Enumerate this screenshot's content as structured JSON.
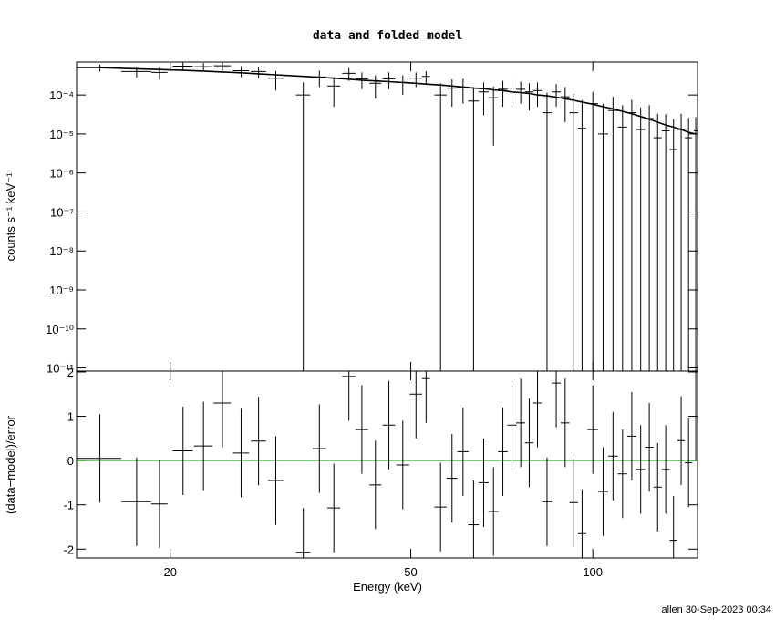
{
  "chart_data": [
    {
      "type": "errorbar",
      "title": "data and folded model",
      "ylabel": "counts s⁻¹ keV⁻¹",
      "log_x": true,
      "log_y": true,
      "xlim": [
        14,
        149
      ],
      "ylim": [
        8.3e-12,
        0.0007
      ],
      "yticks": [
        {
          "value": 0.0001,
          "label": "10⁻⁴"
        },
        {
          "value": 1e-05,
          "label": "10⁻⁵"
        },
        {
          "value": 1e-06,
          "label": "10⁻⁶"
        },
        {
          "value": 1e-07,
          "label": "10⁻⁷"
        },
        {
          "value": 1e-08,
          "label": "10⁻⁸"
        },
        {
          "value": 1e-09,
          "label": "10⁻⁹"
        },
        {
          "value": 1e-10,
          "label": "10⁻¹⁰"
        },
        {
          "value": 1e-11,
          "label": "10⁻¹¹"
        }
      ],
      "color": "#000000",
      "x": [
        15.3,
        17.6,
        19.2,
        21,
        22.7,
        24.4,
        26.2,
        28,
        29.9,
        33.2,
        35.3,
        37.3,
        39.5,
        41.5,
        43.7,
        46,
        48.5,
        51,
        53,
        56,
        58.5,
        61,
        63.5,
        66,
        68.5,
        71,
        73.5,
        76,
        78.5,
        81,
        84,
        87,
        90,
        93,
        96,
        100,
        104,
        108,
        112,
        116,
        120,
        124,
        128,
        132,
        136,
        140,
        144,
        148
      ],
      "xerr": [
        1.3,
        1.0,
        0.6,
        0.8,
        0.8,
        0.8,
        0.8,
        0.8,
        0.9,
        0.9,
        0.9,
        0.9,
        1.0,
        1.0,
        1.0,
        1.1,
        1.2,
        1.2,
        0.8,
        1.3,
        1.2,
        1.3,
        1.3,
        1.3,
        1.3,
        1.3,
        1.3,
        1.3,
        1.3,
        1.3,
        1.5,
        1.5,
        1.5,
        1.5,
        1.5,
        2,
        2,
        2,
        2,
        2,
        2,
        2,
        2,
        2,
        2,
        2,
        2,
        1
      ],
      "values": [
        0.0005,
        0.0004,
        0.00038,
        0.00055,
        0.00053,
        0.00056,
        0.00042,
        0.0004,
        0.00027,
        0.0001,
        0.00029,
        0.00017,
        0.00036,
        0.00026,
        0.0002,
        0.00026,
        0.00021,
        0.00027,
        0.0003,
        0.0001,
        0.00015,
        0.00016,
        7e-05,
        0.00012,
        8.5e-05,
        0.00014,
        0.00015,
        0.00014,
        0.00012,
        0.00013,
        3.5e-05,
        0.00012,
        9e-05,
        3.5e-05,
        1.4e-05,
        6e-05,
        1e-05,
        4e-05,
        1.5e-05,
        3.5e-05,
        1.3e-05,
        2.5e-05,
        8e-06,
        1.2e-05,
        4e-06,
        1.3e-05,
        8e-06,
        1.2e-05
      ],
      "errors": [
        0.0001,
        0.00012,
        0.00013,
        0.00013,
        0.00013,
        0.00014,
        0.00013,
        0.00013,
        0.00014,
        0.00011,
        0.00013,
        0.00012,
        0.00013,
        0.00012,
        0.00012,
        0.00012,
        0.00011,
        0.00011,
        0.00011,
        0.0001,
        0.0001,
        0.0001,
        9e-05,
        9e-05,
        8e-05,
        9e-05,
        9e-05,
        8e-05,
        8e-05,
        8e-05,
        8e-05,
        7e-05,
        7e-05,
        7e-05,
        6e-05,
        6e-05,
        5e-05,
        5e-05,
        4e-05,
        4e-05,
        3.5e-05,
        3e-05,
        2.5e-05,
        2e-05,
        2e-05,
        2e-05,
        1.8e-05,
        1.5e-05
      ],
      "model": [
        0.0005,
        0.00047,
        0.00045,
        0.00043,
        0.00041,
        0.00039,
        0.00037,
        0.00035,
        0.00033,
        0.0003,
        0.000285,
        0.00027,
        0.000255,
        0.00024,
        0.00023,
        0.00022,
        0.00021,
        0.0002,
        0.00019,
        0.00018,
        0.00017,
        0.00016,
        0.00015,
        0.000145,
        0.000135,
        0.00013,
        0.00012,
        0.000115,
        0.00011,
        0.0001,
        9.5e-05,
        8.8e-05,
        8e-05,
        7.3e-05,
        6.6e-05,
        5.8e-05,
        5e-05,
        4.4e-05,
        3.8e-05,
        3.3e-05,
        2.8e-05,
        2.4e-05,
        2e-05,
        1.7e-05,
        1.5e-05,
        1.3e-05,
        1.1e-05,
        1e-05
      ]
    },
    {
      "type": "residual",
      "xlabel": "Energy (keV)",
      "ylabel": "(data−model)/error",
      "log_x": true,
      "xlim": [
        14,
        149
      ],
      "ylim": [
        -2.2,
        2.02
      ],
      "xticks": [
        20,
        50,
        100
      ],
      "yticks": [
        -2,
        -1,
        0,
        1,
        2
      ],
      "color": "#000000",
      "zero_line": 0,
      "zero_color": "#00cc00",
      "x": [
        15.3,
        17.6,
        19.2,
        21,
        22.7,
        24.4,
        26.2,
        28,
        29.9,
        33.2,
        35.3,
        37.3,
        39.5,
        41.5,
        43.7,
        46,
        48.5,
        51,
        53,
        56,
        58.5,
        61,
        63.5,
        66,
        68.5,
        71,
        73.5,
        76,
        78.5,
        81,
        84,
        87,
        90,
        93,
        96,
        100,
        104,
        108,
        112,
        116,
        120,
        124,
        128,
        132,
        136,
        140,
        144,
        148
      ],
      "xerr": [
        1.3,
        1.0,
        0.6,
        0.8,
        0.8,
        0.8,
        0.8,
        0.8,
        0.9,
        0.9,
        0.9,
        0.9,
        1.0,
        1.0,
        1.0,
        1.1,
        1.2,
        1.2,
        0.8,
        1.3,
        1.2,
        1.3,
        1.3,
        1.3,
        1.3,
        1.3,
        1.3,
        1.3,
        1.3,
        1.3,
        1.5,
        1.5,
        1.5,
        1.5,
        1.5,
        2,
        2,
        2,
        2,
        2,
        2,
        2,
        2,
        2,
        2,
        2,
        2,
        1
      ],
      "values": [
        0.05,
        -0.93,
        -0.98,
        0.22,
        0.33,
        1.3,
        0.17,
        0.44,
        -0.45,
        -2.07,
        0.27,
        -1.07,
        1.9,
        0.7,
        -0.55,
        0.8,
        -0.1,
        1.5,
        1.85,
        -1.05,
        -0.4,
        0.2,
        -1.45,
        -0.5,
        -1.15,
        0.2,
        0.8,
        0.85,
        0.4,
        1.3,
        -0.93,
        1.75,
        0.85,
        -0.95,
        -1.65,
        0.7,
        -0.7,
        0.1,
        -0.3,
        0.55,
        -0.2,
        0.3,
        -0.6,
        -0.2,
        -1.8,
        0.45,
        -0.05,
        1.0
      ],
      "errors": [
        1,
        1,
        1,
        1,
        1,
        1,
        1,
        1,
        1,
        1,
        1,
        1,
        1,
        1,
        1,
        1,
        1,
        1,
        1,
        1,
        1,
        1,
        1,
        1,
        1,
        1,
        1,
        1,
        1,
        1,
        1,
        1,
        1,
        1,
        1,
        1,
        1,
        1,
        1,
        1,
        1,
        1,
        1,
        1,
        1,
        1,
        1,
        1
      ]
    }
  ],
  "footer": "allen 30-Sep-2023 00:34"
}
